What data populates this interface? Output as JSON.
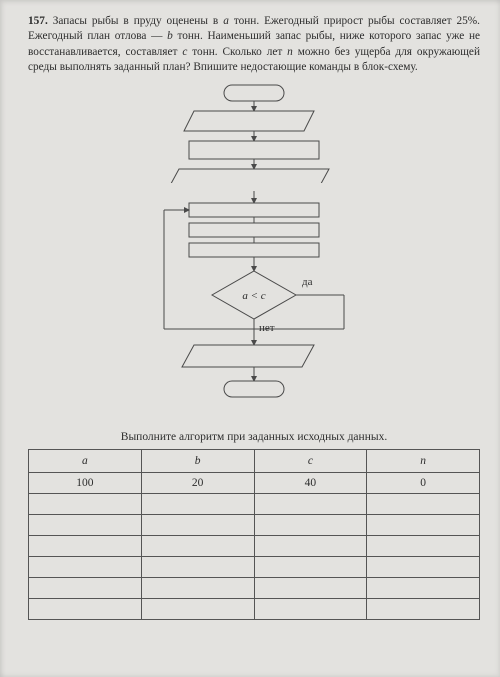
{
  "problem": {
    "number": "157.",
    "text_parts": [
      "Запасы рыбы в пруду оценены в ",
      " тонн. Ежегодный при­рост рыбы составляет 25%. Ежегодный план отлова — ",
      " тонн. Наименьший запас рыбы, ниже которого запас уже не восстанавливается, составляет ",
      " тонн. Сколько лет ",
      " можно без ущерба для окружающей среды выпол­нять заданный план? Впишите недостающие команды в блок-схему."
    ],
    "vars": {
      "a": "a",
      "b": "b",
      "c": "c",
      "n": "n"
    }
  },
  "flowchart": {
    "decision_label": "a < c",
    "yes_label": "да",
    "no_label": "нет"
  },
  "table_caption": "Выполните алгоритм при заданных исходных данных.",
  "table": {
    "headers": [
      "a",
      "b",
      "c",
      "n"
    ],
    "rows": [
      [
        "100",
        "20",
        "40",
        "0"
      ],
      [
        "",
        "",
        "",
        ""
      ],
      [
        "",
        "",
        "",
        ""
      ],
      [
        "",
        "",
        "",
        ""
      ],
      [
        "",
        "",
        "",
        ""
      ],
      [
        "",
        "",
        "",
        ""
      ],
      [
        "",
        "",
        "",
        ""
      ]
    ]
  },
  "colors": {
    "page_bg": "#e3e2df",
    "stroke": "#4a4a4a",
    "text": "#2d2d2d"
  }
}
